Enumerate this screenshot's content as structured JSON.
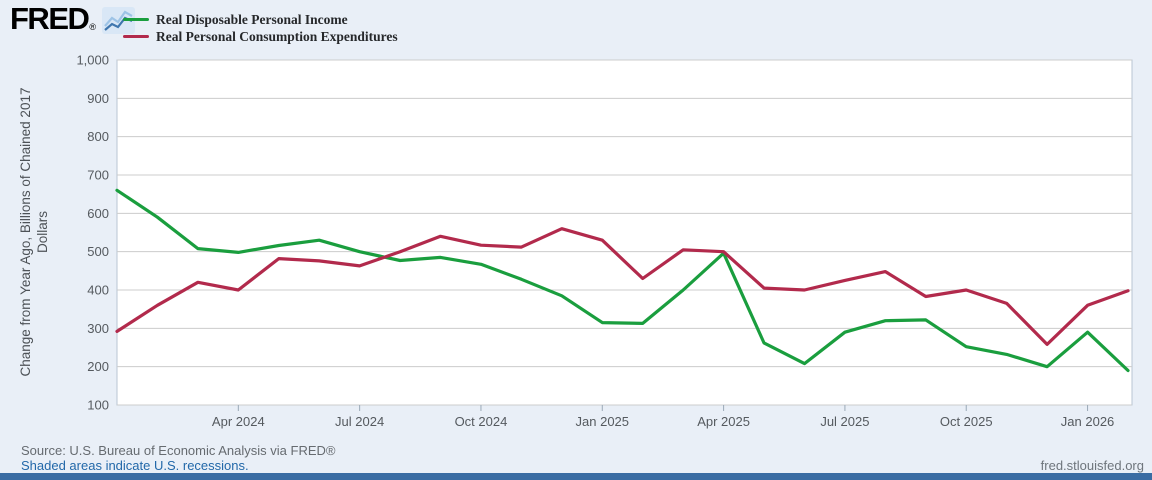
{
  "header": {
    "logo_text": "FRED",
    "logo_mark": "®",
    "legend": [
      {
        "label": "Real Disposable Personal Income",
        "color": "#1a9e3e"
      },
      {
        "label": "Real Personal Consumption Expenditures",
        "color": "#b22a4c"
      }
    ]
  },
  "footer": {
    "source": "Source: U.S. Bureau of Economic Analysis via FRED®",
    "note": "Shaded areas indicate U.S. recessions.",
    "site": "fred.stlouisfed.org"
  },
  "chart_data": {
    "type": "line",
    "title": "",
    "ylabel_line1": "Change from Year Ago, Billions of Chained 2017",
    "ylabel_line2": "Dollars",
    "ylim": [
      100,
      1000
    ],
    "ytick_step": 100,
    "ytick_labels": [
      "100",
      "200",
      "300",
      "400",
      "500",
      "600",
      "700",
      "800",
      "900",
      "1,000"
    ],
    "grid": "horizontal",
    "legend_position": "top-left",
    "x": [
      "Jan 2024",
      "Feb 2024",
      "Mar 2024",
      "Apr 2024",
      "May 2024",
      "Jun 2024",
      "Jul 2024",
      "Aug 2024",
      "Sep 2024",
      "Oct 2024",
      "Nov 2024",
      "Dec 2024",
      "Jan 2025",
      "Feb 2025",
      "Mar 2025",
      "Apr 2025",
      "May 2025",
      "Jun 2025",
      "Jul 2025",
      "Aug 2025",
      "Sep 2025",
      "Oct 2025",
      "Nov 2025",
      "Dec 2025",
      "Jan 2026",
      "Feb 2026"
    ],
    "xtick_labels": [
      "Apr 2024",
      "Jul 2024",
      "Oct 2024",
      "Jan 2025",
      "Apr 2025",
      "Jul 2025",
      "Oct 2025",
      "Jan 2026"
    ],
    "xtick_month_indices": [
      3,
      6,
      9,
      12,
      15,
      18,
      21,
      24
    ],
    "series": [
      {
        "name": "Real Disposable Personal Income",
        "color": "#1a9e3e",
        "values": [
          660,
          590,
          508,
          498,
          516,
          530,
          500,
          477,
          485,
          467,
          428,
          385,
          315,
          313,
          400,
          496,
          262,
          208,
          290,
          320,
          322,
          252,
          232,
          200,
          290,
          190
        ]
      },
      {
        "name": "Real Personal Consumption Expenditures",
        "color": "#b22a4c",
        "values": [
          292,
          360,
          420,
          400,
          482,
          476,
          463,
          500,
          540,
          517,
          512,
          560,
          530,
          430,
          505,
          500,
          405,
          400,
          425,
          448,
          383,
          400,
          365,
          258,
          360,
          398
        ]
      }
    ],
    "style": {
      "plot_bg": "#ffffff",
      "page_bg": "#e9eff7",
      "gridline_color": "#cccccc",
      "border_color": "#b9c6d3",
      "tick_color": "#9aa9b7",
      "tick_label_color": "#555a5f",
      "line_width": 3.2
    }
  }
}
